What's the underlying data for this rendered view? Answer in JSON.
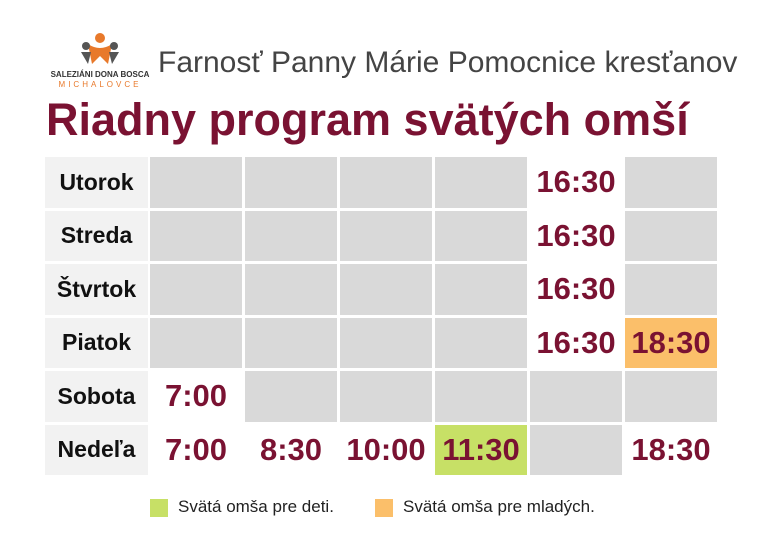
{
  "header": {
    "logo_text": "SALEZIÁNI DONA BOSCA",
    "logo_subtext": "MICHALOVCE",
    "parish": "Farnosť Panny Márie Pomocnice kresťanov",
    "title": "Riadny program svätých omší"
  },
  "table": {
    "rows": [
      {
        "day": "Utorok",
        "cells": [
          null,
          null,
          null,
          null,
          "16:30",
          null
        ]
      },
      {
        "day": "Streda",
        "cells": [
          null,
          null,
          null,
          null,
          "16:30",
          null
        ]
      },
      {
        "day": "Štvrtok",
        "cells": [
          null,
          null,
          null,
          null,
          "16:30",
          null
        ]
      },
      {
        "day": "Piatok",
        "cells": [
          null,
          null,
          null,
          null,
          "16:30",
          {
            "text": "18:30",
            "color": "#fbbf6a"
          }
        ]
      },
      {
        "day": "Sobota",
        "cells": [
          "7:00",
          null,
          null,
          null,
          null,
          null
        ]
      },
      {
        "day": "Nedeľa",
        "cells": [
          "7:00",
          "8:30",
          "10:00",
          {
            "text": "11:30",
            "color": "#c7e066"
          },
          null,
          "18:30"
        ]
      }
    ]
  },
  "legend": [
    {
      "label": "Svätá omša pre deti.",
      "color": "#c7e066"
    },
    {
      "label": "Svätá omša pre mladých.",
      "color": "#fbbf6a"
    }
  ]
}
